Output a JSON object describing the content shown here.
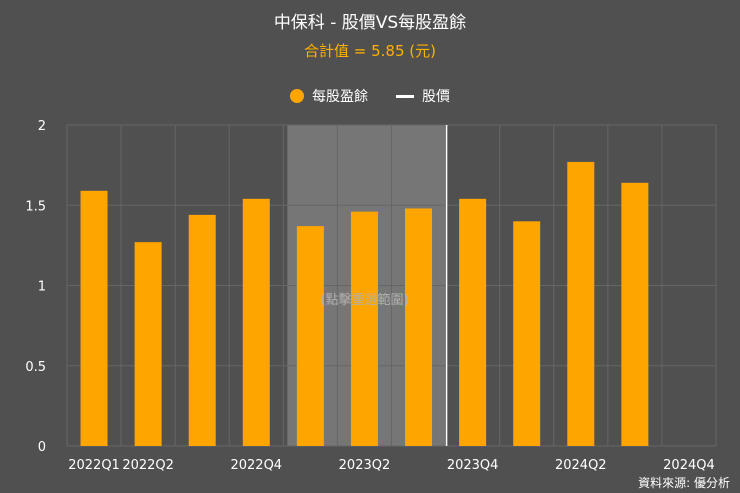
{
  "title": "中保科 - 股價VS每股盈餘",
  "subtitle": "合計值 = 5.85 (元)",
  "legend": {
    "eps_label": "每股盈餘",
    "price_label": "股價"
  },
  "overlay_text": "(點擊重選範圍)",
  "source": "資料來源: 優分析",
  "colors": {
    "bar": "#ffa500",
    "background": "#505050",
    "grid": "#666666",
    "selection": "#7a7a7a",
    "title": "#ffffff",
    "subtitle": "#ffb000"
  },
  "chart_data": {
    "type": "bar",
    "title": "中保科 - 股價VS每股盈餘",
    "xlabel": "",
    "ylabel": "",
    "ylim": [
      0,
      2
    ],
    "yticks": [
      0,
      0.5,
      1,
      1.5,
      2
    ],
    "ytick_labels": [
      "0",
      "0.5",
      "1",
      "1.5",
      "2"
    ],
    "categories": [
      "2022Q1",
      "2022Q2",
      "2022Q3",
      "2022Q4",
      "2023Q1",
      "2023Q2",
      "2023Q3",
      "2023Q4",
      "2024Q1",
      "2024Q2",
      "2024Q3",
      "2024Q4"
    ],
    "xtick_labels": [
      "2022Q1",
      "2022Q2",
      "",
      "2022Q4",
      "",
      "2023Q2",
      "",
      "2023Q4",
      "",
      "2024Q2",
      "",
      "2024Q4"
    ],
    "series": [
      {
        "name": "每股盈餘",
        "values": [
          1.59,
          1.27,
          1.44,
          1.54,
          1.37,
          1.46,
          1.48,
          1.54,
          1.4,
          1.77,
          1.64,
          null
        ]
      }
    ],
    "selection": {
      "from": "2023Q1",
      "to": "2023Q3"
    },
    "price_marker": "2023Q4"
  }
}
